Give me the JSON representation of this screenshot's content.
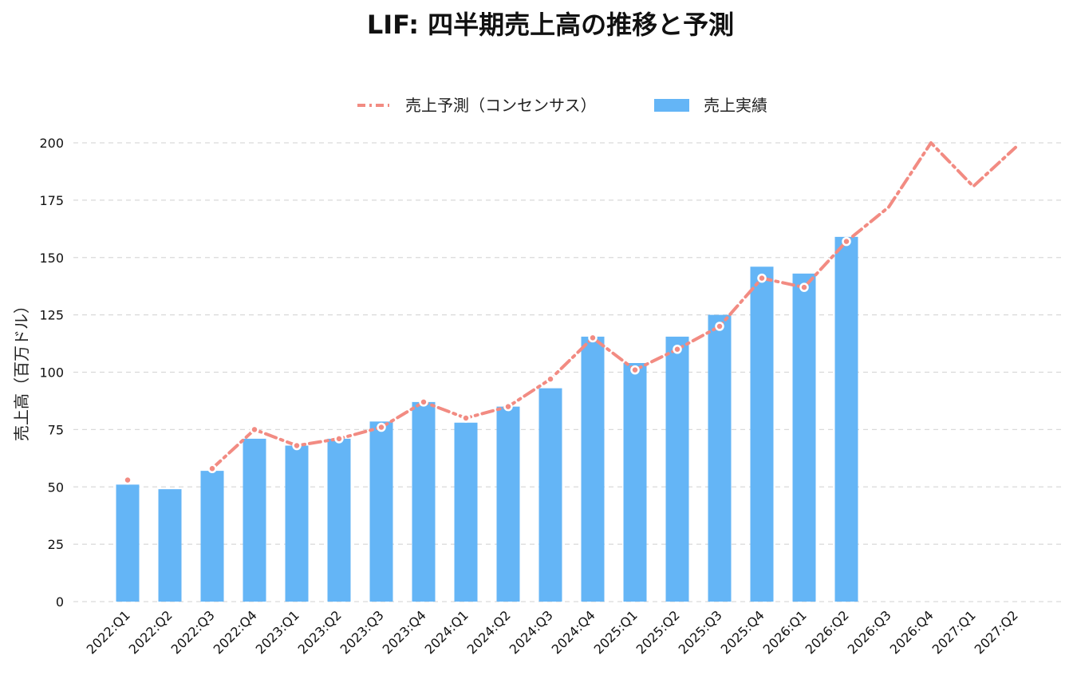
{
  "chart_data": {
    "type": "bar",
    "title": "LIF: 四半期売上高の推移と予測",
    "ylabel": "売上高（百万ドル）",
    "xlabel": "",
    "ylim": [
      0,
      200
    ],
    "yticks": [
      0,
      25,
      50,
      75,
      100,
      125,
      150,
      175,
      200
    ],
    "grid": true,
    "legend_position": "top-center",
    "categories": [
      "2022:Q1",
      "2022:Q2",
      "2022:Q3",
      "2022:Q4",
      "2023:Q1",
      "2023:Q2",
      "2023:Q3",
      "2023:Q4",
      "2024:Q1",
      "2024:Q2",
      "2024:Q3",
      "2024:Q4",
      "2025:Q1",
      "2025:Q2",
      "2025:Q3",
      "2025:Q4",
      "2026:Q1",
      "2026:Q2",
      "2026:Q3",
      "2026:Q4",
      "2027:Q1",
      "2027:Q2"
    ],
    "series": [
      {
        "name": "売上予測（コンセンサス）",
        "type": "line",
        "color": "#f28b82",
        "values": [
          53,
          null,
          58,
          75,
          68,
          71,
          76,
          87,
          80,
          85,
          97,
          115,
          101,
          110,
          120,
          141,
          137,
          157,
          172,
          200,
          181,
          198
        ]
      },
      {
        "name": "売上実績",
        "type": "bar",
        "color": "#64b5f6",
        "values": [
          51,
          49,
          57,
          71,
          68,
          71,
          78.5,
          87,
          78,
          85,
          93,
          115.5,
          104,
          115.5,
          125,
          146,
          143,
          159,
          null,
          null,
          null,
          null
        ]
      }
    ]
  }
}
